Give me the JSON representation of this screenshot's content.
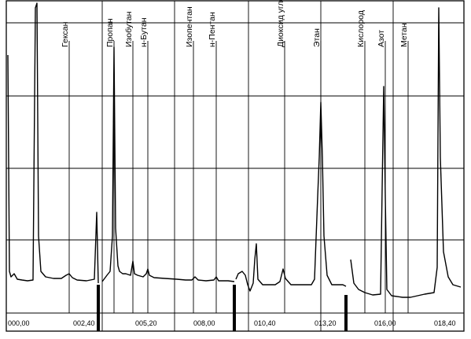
{
  "chart_data": {
    "type": "line",
    "title": "",
    "xlabel": "",
    "ylabel": "",
    "x_tick_labels": [
      "000,00",
      "002,40",
      "005,20",
      "008,00",
      "010,40",
      "013,20",
      "016,00",
      "018,40"
    ],
    "grid": true,
    "peaks": [
      {
        "label": "Гексан"
      },
      {
        "label": "Пропан"
      },
      {
        "label": "Изобутан"
      },
      {
        "label": "н-Бутан"
      },
      {
        "label": "Изопентан"
      },
      {
        "label": "н-Пентан"
      },
      {
        "label": "Диоксид углерода"
      },
      {
        "label": "Этан"
      },
      {
        "label": "Кислород"
      },
      {
        "label": "Азот"
      },
      {
        "label": "Метан"
      }
    ]
  }
}
